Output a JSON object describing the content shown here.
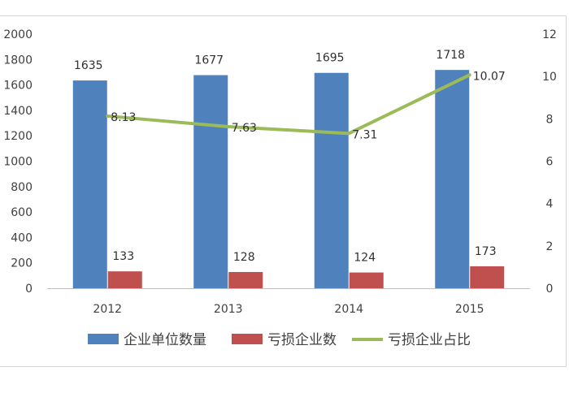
{
  "chart_data": {
    "type": "bar",
    "categories": [
      "2012",
      "2013",
      "2014",
      "2015"
    ],
    "series": [
      {
        "name": "企业单位数量",
        "kind": "bar",
        "axis": "left",
        "color": "#4f81bd",
        "values": [
          1635,
          1677,
          1695,
          1718
        ]
      },
      {
        "name": "亏损企业数",
        "kind": "bar",
        "axis": "left",
        "color": "#c0504d",
        "values": [
          133,
          128,
          124,
          173
        ]
      },
      {
        "name": "亏损企业占比",
        "kind": "line",
        "axis": "right",
        "color": "#9bbb59",
        "values": [
          8.13,
          7.63,
          7.31,
          10.07
        ]
      }
    ],
    "data_labels": {
      "bar1": [
        "1635",
        "1677",
        "1695",
        "1718"
      ],
      "bar2": [
        "133",
        "128",
        "124",
        "173"
      ],
      "line": [
        "8.13",
        "7.63",
        "7.31",
        "10.07"
      ]
    },
    "ylim_left": [
      0,
      2000
    ],
    "yticks_left": [
      "2000",
      "1800",
      "1600",
      "1400",
      "1200",
      "1000",
      "800",
      "600",
      "400",
      "200",
      "0"
    ],
    "ylim_right": [
      0,
      12
    ],
    "yticks_right": [
      "12",
      "10",
      "8",
      "6",
      "4",
      "2",
      "0"
    ],
    "grid": false,
    "legend_position": "bottom"
  }
}
